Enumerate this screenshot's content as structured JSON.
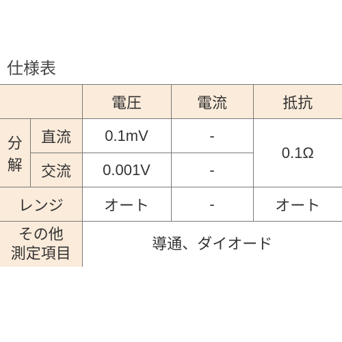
{
  "title": "仕様表",
  "header": {
    "voltage": "電圧",
    "current": "電流",
    "resistance": "抵抗"
  },
  "rows": {
    "resolution_group": "分\n解",
    "dc": "直流",
    "ac": "交流",
    "range": "レンジ",
    "other": "その他\n測定項目"
  },
  "values": {
    "dc_voltage": "0.1mV",
    "dc_current": "-",
    "ac_voltage": "0.001V",
    "ac_current": "-",
    "resistance_resolution": "0.1Ω",
    "range_voltage": "オート",
    "range_current": "-",
    "range_resistance": "オート",
    "other_items": "導通、ダイオード"
  },
  "colors": {
    "header_bg": "#fbebda",
    "border": "#777777",
    "text": "#333333",
    "background": "#ffffff"
  },
  "fonts": {
    "title_pt": 24,
    "cell_pt": 22
  }
}
